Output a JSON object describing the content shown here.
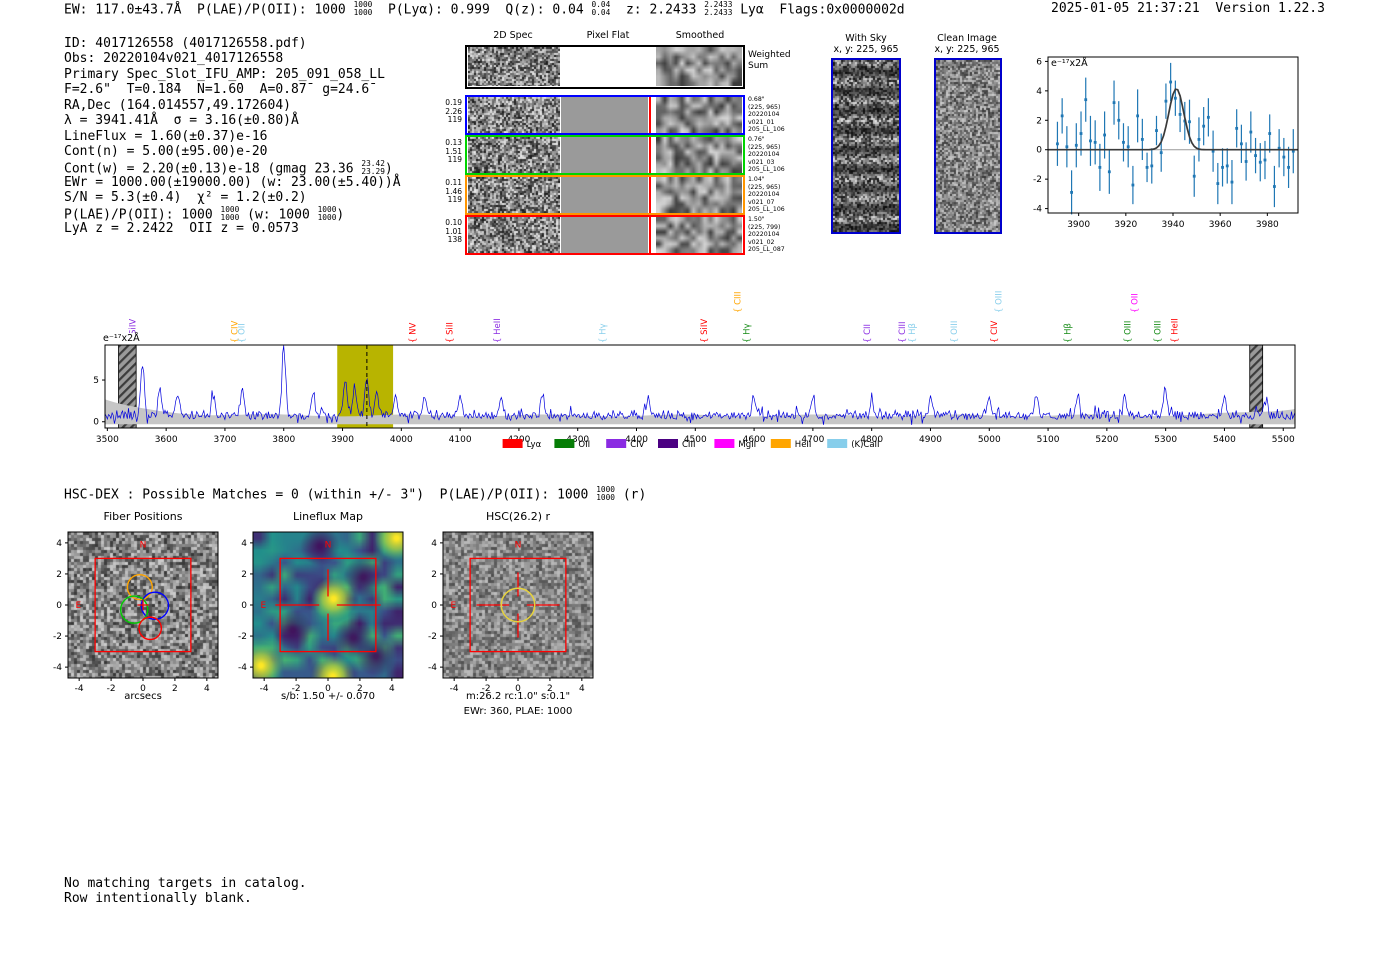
{
  "header": {
    "left_segments": [
      {
        "t": "EW: 117.0±43.7Å  P(LAE)/P(OII): 1000 "
      },
      {
        "f": [
          "1000",
          "1000"
        ]
      },
      {
        "t": "  P(Lyα): 0.999  Q(z): 0.04 "
      },
      {
        "f": [
          "0.04",
          "0.04"
        ]
      },
      {
        "t": "  z: 2.2433 "
      },
      {
        "f": [
          "2.2433",
          "2.2433"
        ]
      },
      {
        "t": " Lyα  Flags:0x0000002d"
      }
    ],
    "timestamp": "2025-01-05 21:37:21  Version 1.22.3"
  },
  "info": {
    "lines": [
      [
        {
          "t": "ID: 4017126558 (4017126558.pdf)"
        }
      ],
      [
        {
          "t": "Obs: 20220104v021_4017126558"
        }
      ],
      [
        {
          "t": "Primary Spec_Slot_IFU_AMP: 205_091_058_LL"
        }
      ],
      [
        {
          "t": "F=2.6\"  T=0.1̄8̄4  N=1.6̄0  A=0.87̄  g=24.6̄"
        }
      ],
      [
        {
          "t": "RA,Dec (164.014557,49.172604)"
        }
      ],
      [
        {
          "t": "λ = 3941.41Å  σ = 3.16(±0.80)Å"
        }
      ],
      [
        {
          "t": "LineFlux = 1.60(±0.37)e-16"
        }
      ],
      [
        {
          "t": "Cont(n) = 5.00(±95.00)e-20"
        }
      ],
      [
        {
          "t": "Cont(w) = 2.20(±0.13)e-18 (gmag 23.36 "
        },
        {
          "f": [
            "23.42",
            "23.29"
          ]
        },
        {
          "t": ")"
        }
      ],
      [
        {
          "t": "EWr = 1000.00(±19000.00) (w: 23.00(±5.40))Å"
        }
      ],
      [
        {
          "t": "S/N = 5.3(±0.4)  χ² = 1.2(±0.2)"
        }
      ],
      [
        {
          "t": "P(LAE)/P(OII): 1000 "
        },
        {
          "f": [
            "1000",
            "1000"
          ]
        },
        {
          "t": " (w: 1000 "
        },
        {
          "f": [
            "1000",
            "1000"
          ]
        },
        {
          "t": ")"
        }
      ],
      [
        {
          "t": "LyA z = 2.2422  OII z = 0.0573"
        }
      ]
    ]
  },
  "cutouts": {
    "col_headers": [
      "2D Spec",
      "Pixel Flat",
      "Smoothed"
    ],
    "weighted_label": [
      "Weighted",
      "Sum"
    ],
    "rows": [
      {
        "border": "#0000ff",
        "left": [
          "0.19",
          "2.26",
          "119"
        ],
        "right": [
          "0.68\"",
          "(225, 965)",
          "20220104",
          "v021_01",
          "205_LL_106"
        ]
      },
      {
        "border": "#00d400",
        "left": [
          "0.13",
          "1.51",
          "119"
        ],
        "right": [
          "0.76\"",
          "(225, 965)",
          "20220104",
          "v021_03",
          "205_LL_106"
        ]
      },
      {
        "border": "#ff9500",
        "left": [
          "0.11",
          "1.46",
          "119"
        ],
        "right": [
          "1.04\"",
          "(225, 965)",
          "20220104",
          "v021_07",
          "205_LL_106"
        ]
      },
      {
        "border": "#ff0000",
        "left": [
          "0.10",
          "1.01",
          "138"
        ],
        "right": [
          "1.50\"",
          "(225, 799)",
          "20220104",
          "v021_02",
          "205_LL_087"
        ]
      }
    ]
  },
  "sky_panels": {
    "with_sky": {
      "title": "With Sky",
      "coords": "x, y: 225, 965"
    },
    "clean": {
      "title": "Clean Image",
      "coords": "x, y: 225, 965"
    }
  },
  "match_line": {
    "segments": [
      {
        "t": "HSC-DEX : Possible Matches = 0 (within +/- 3\")  P(LAE)/P(OII): 1000 "
      },
      {
        "f": [
          "1000",
          "1000"
        ]
      },
      {
        "t": " (r)"
      }
    ]
  },
  "footer": {
    "lines": [
      "No matching targets in catalog.",
      "Row intentionally blank."
    ]
  },
  "chart_data": [
    {
      "id": "line_fit_plot",
      "type": "scatter",
      "ylabel": "e⁻¹⁷x2Å",
      "xlim": [
        3887,
        3993
      ],
      "ylim": [
        -4.3,
        6.3
      ],
      "xticks": [
        3900,
        3920,
        3940,
        3960,
        3980
      ],
      "yticks": [
        -4,
        -2,
        0,
        2,
        4,
        6
      ],
      "point_color": "#1f77b4",
      "fit": {
        "shape": "gaussian",
        "center": 3941.41,
        "sigma": 3.16,
        "amplitude": 4.15,
        "color": "#3a3a3a"
      },
      "points": [
        [
          3891,
          0.4,
          1.5
        ],
        [
          3893,
          2.3,
          1.2
        ],
        [
          3895,
          0.2,
          1.4
        ],
        [
          3897,
          -2.9,
          1.5
        ],
        [
          3899,
          0.3,
          1.5
        ],
        [
          3901,
          1.1,
          1.5
        ],
        [
          3903,
          3.4,
          1.5
        ],
        [
          3905,
          0.6,
          1.7
        ],
        [
          3907,
          0.5,
          1.5
        ],
        [
          3909,
          -1.2,
          1.6
        ],
        [
          3911,
          1.0,
          1.6
        ],
        [
          3913,
          -1.5,
          1.5
        ],
        [
          3915,
          3.2,
          1.5
        ],
        [
          3917,
          2.0,
          1.3
        ],
        [
          3919,
          0.5,
          1.3
        ],
        [
          3921,
          0.2,
          1.4
        ],
        [
          3923,
          -2.4,
          1.3
        ],
        [
          3925,
          2.3,
          1.8
        ],
        [
          3927,
          0.7,
          1.4
        ],
        [
          3929,
          -1.2,
          1.0
        ],
        [
          3931,
          -1.1,
          1.2
        ],
        [
          3933,
          1.3,
          1.0
        ],
        [
          3935,
          -0.2,
          1.3
        ],
        [
          3937,
          3.3,
          1.2
        ],
        [
          3939,
          4.6,
          1.3
        ],
        [
          3941,
          3.5,
          1.2
        ],
        [
          3943,
          2.4,
          1.2
        ],
        [
          3945,
          1.95,
          1.3
        ],
        [
          3947,
          1.9,
          1.5
        ],
        [
          3949,
          -1.8,
          1.4
        ],
        [
          3951,
          0.7,
          1.5
        ],
        [
          3953,
          1.6,
          1.3
        ],
        [
          3955,
          2.2,
          1.3
        ],
        [
          3957,
          -0.1,
          1.4
        ],
        [
          3959,
          -2.3,
          1.4
        ],
        [
          3961,
          -1.2,
          1.3
        ],
        [
          3963,
          -1.1,
          1.2
        ],
        [
          3965,
          -2.2,
          1.5
        ],
        [
          3967,
          1.45,
          1.3
        ],
        [
          3969,
          0.4,
          1.3
        ],
        [
          3971,
          -0.8,
          1.3
        ],
        [
          3973,
          1.2,
          1.4
        ],
        [
          3975,
          -0.4,
          1.2
        ],
        [
          3977,
          -0.85,
          1.3
        ],
        [
          3979,
          -0.7,
          1.3
        ],
        [
          3981,
          1.1,
          1.3
        ],
        [
          3983,
          -2.5,
          1.4
        ],
        [
          3985,
          0.1,
          1.3
        ],
        [
          3987,
          -0.5,
          1.3
        ],
        [
          3989,
          -1.2,
          1.4
        ],
        [
          3991,
          -0.1,
          1.5
        ]
      ]
    },
    {
      "id": "full_spectrum",
      "type": "line",
      "ylabel": "e⁻¹⁷x2Å",
      "xlim": [
        3496,
        5520
      ],
      "ylim": [
        -0.75,
        9.2
      ],
      "xticks": [
        3500,
        3600,
        3700,
        3800,
        3900,
        4000,
        4100,
        4200,
        4300,
        4400,
        4500,
        4600,
        4700,
        4800,
        4900,
        5000,
        5100,
        5200,
        5300,
        5400,
        5500
      ],
      "yticks": [
        0,
        5
      ],
      "line_color": "#0000dd",
      "noise": {
        "seed": 11,
        "base": 0.2,
        "amp": 0.5
      },
      "spikes": [
        [
          3560,
          6.0
        ],
        [
          3590,
          3.2
        ],
        [
          3620,
          2.6
        ],
        [
          3680,
          2.4
        ],
        [
          3730,
          3.2
        ],
        [
          3800,
          8.8
        ],
        [
          3850,
          2.6
        ],
        [
          3905,
          4.2
        ],
        [
          3920,
          3.6
        ],
        [
          3941,
          4.6
        ],
        [
          3958,
          3.2
        ],
        [
          3990,
          2.8
        ],
        [
          4040,
          2.4
        ],
        [
          4100,
          2.6
        ],
        [
          4170,
          2.3
        ],
        [
          4240,
          2.4
        ],
        [
          4420,
          2.2
        ],
        [
          4600,
          2.3
        ],
        [
          4700,
          2.6
        ],
        [
          4800,
          2.2
        ],
        [
          4900,
          2.3
        ],
        [
          5000,
          2.5
        ],
        [
          5080,
          2.3
        ],
        [
          5150,
          2.4
        ],
        [
          5230,
          2.6
        ],
        [
          5300,
          2.4
        ],
        [
          5400,
          2.3
        ],
        [
          5470,
          2.6
        ]
      ],
      "error_band": {
        "color": "#c6c6c6",
        "bottom": -0.3,
        "top_mid": 0.75,
        "edge_boost": 1.9
      },
      "highlight_band": {
        "x0": 3891,
        "x1": 3986,
        "color": "#b8b400"
      },
      "marker_line": 3941.41,
      "masked_regions": [
        [
          3519,
          3549
        ],
        [
          5443,
          5465
        ]
      ],
      "emission_labels": [
        {
          "name": "SiIV",
          "wave": 3548,
          "color": "#8a2be2",
          "row": 0
        },
        {
          "name": "CIV",
          "wave": 3721,
          "color": "#ffa500",
          "row": 0
        },
        {
          "name": "OII",
          "wave": 3733,
          "color": "#87ceeb",
          "row": 0
        },
        {
          "name": "NV",
          "wave": 4024,
          "color": "#ff0000",
          "row": 0
        },
        {
          "name": "SiII",
          "wave": 4087,
          "color": "#ff0000",
          "row": 0
        },
        {
          "name": "HeII",
          "wave": 4168,
          "color": "#8a2be2",
          "row": 0
        },
        {
          "name": "Hγ",
          "wave": 4347,
          "color": "#87ceeb",
          "row": 0
        },
        {
          "name": "SiIV",
          "wave": 4520,
          "color": "#ff0000",
          "row": 0
        },
        {
          "name": "CIII",
          "wave": 4577,
          "color": "#ffa500",
          "row": 1
        },
        {
          "name": "Hγ",
          "wave": 4592,
          "color": "#138a13",
          "row": 0
        },
        {
          "name": "CII",
          "wave": 4797,
          "color": "#8a2be2",
          "row": 0
        },
        {
          "name": "CIII",
          "wave": 4857,
          "color": "#8a2be2",
          "row": 0
        },
        {
          "name": "Hβ",
          "wave": 4874,
          "color": "#87ceeb",
          "row": 0
        },
        {
          "name": "OIII",
          "wave": 4945,
          "color": "#87ceeb",
          "row": 0
        },
        {
          "name": "CIV",
          "wave": 5013,
          "color": "#ff0000",
          "row": 0
        },
        {
          "name": "OIII",
          "wave": 5021,
          "color": "#87ceeb",
          "row": 1
        },
        {
          "name": "Hβ",
          "wave": 5138,
          "color": "#138a13",
          "row": 0
        },
        {
          "name": "OIII",
          "wave": 5240,
          "color": "#138a13",
          "row": 0
        },
        {
          "name": "OII",
          "wave": 5252,
          "color": "#ff00ff",
          "row": 1
        },
        {
          "name": "OIII",
          "wave": 5291,
          "color": "#138a13",
          "row": 0
        },
        {
          "name": "HeII",
          "wave": 5320,
          "color": "#ff0000",
          "row": 0
        }
      ],
      "legend": [
        {
          "label": "Lyα",
          "color": "#ff0000"
        },
        {
          "label": "OII",
          "color": "#067d06"
        },
        {
          "label": "CIV",
          "color": "#8a2be2"
        },
        {
          "label": "CIII",
          "color": "#4b0082"
        },
        {
          "label": "MgII",
          "color": "#ff00ff"
        },
        {
          "label": "HeII",
          "color": "#ffa500"
        },
        {
          "label": "(K)CaII",
          "color": "#87ceeb"
        }
      ]
    },
    {
      "id": "fiber_positions",
      "type": "image-panel",
      "title": "Fiber Positions",
      "xlabel": "arcsecs",
      "ticks": [
        -4,
        -2,
        0,
        2,
        4
      ],
      "range": [
        -4.7,
        4.7
      ],
      "ifu_square": [
        -3,
        3
      ],
      "compass": {
        "north": "N",
        "east": "E"
      },
      "fibers": [
        {
          "x": -0.2,
          "y": 1.15,
          "r": 0.78,
          "color": "#ffa500"
        },
        {
          "x": 0.75,
          "y": -0.05,
          "r": 0.85,
          "color": "#0000ff"
        },
        {
          "x": -0.55,
          "y": -0.3,
          "r": 0.85,
          "color": "#00cc00"
        },
        {
          "x": 0.45,
          "y": -1.5,
          "r": 0.7,
          "color": "#ff0000"
        }
      ],
      "center_cross": true
    },
    {
      "id": "lineflux_map",
      "type": "heatmap-panel",
      "title": "Lineflux Map",
      "xlabel": "s/b: 1.50 +/- 0.070",
      "ticks": [
        -4,
        -2,
        0,
        2,
        4
      ],
      "range": [
        -4.7,
        4.7
      ],
      "ifu_square": [
        -3,
        3
      ],
      "compass": {
        "north": "N",
        "east": "E"
      },
      "crosshair": true,
      "colormap": "viridis",
      "hotspots": [
        [
          0.35,
          0.4
        ],
        [
          4.3,
          4.3
        ],
        [
          -4.2,
          -3.9
        ],
        [
          0.3,
          -4.6
        ]
      ],
      "darkspots": [
        [
          -0.5,
          3.8
        ],
        [
          2.2,
          1.8
        ],
        [
          3.0,
          -3.3
        ],
        [
          -2.2,
          -1.6
        ],
        [
          1.6,
          -2.1
        ]
      ]
    },
    {
      "id": "hsc_r_cutout",
      "type": "image-panel",
      "title": "HSC(26.2) r",
      "xlabel": "m:26.2 rc:1.0\" s:0.1\"",
      "xlabel2": "EWr: 360, PLAE: 1000",
      "ticks": [
        -4,
        -2,
        0,
        2,
        4
      ],
      "range": [
        -4.7,
        4.7
      ],
      "ifu_square": [
        -3,
        3
      ],
      "compass": {
        "north": "N",
        "east": "E"
      },
      "crosshair": true,
      "aperture": {
        "x": 0,
        "y": 0,
        "r": 1.05,
        "color": "#e6d23c"
      }
    }
  ]
}
